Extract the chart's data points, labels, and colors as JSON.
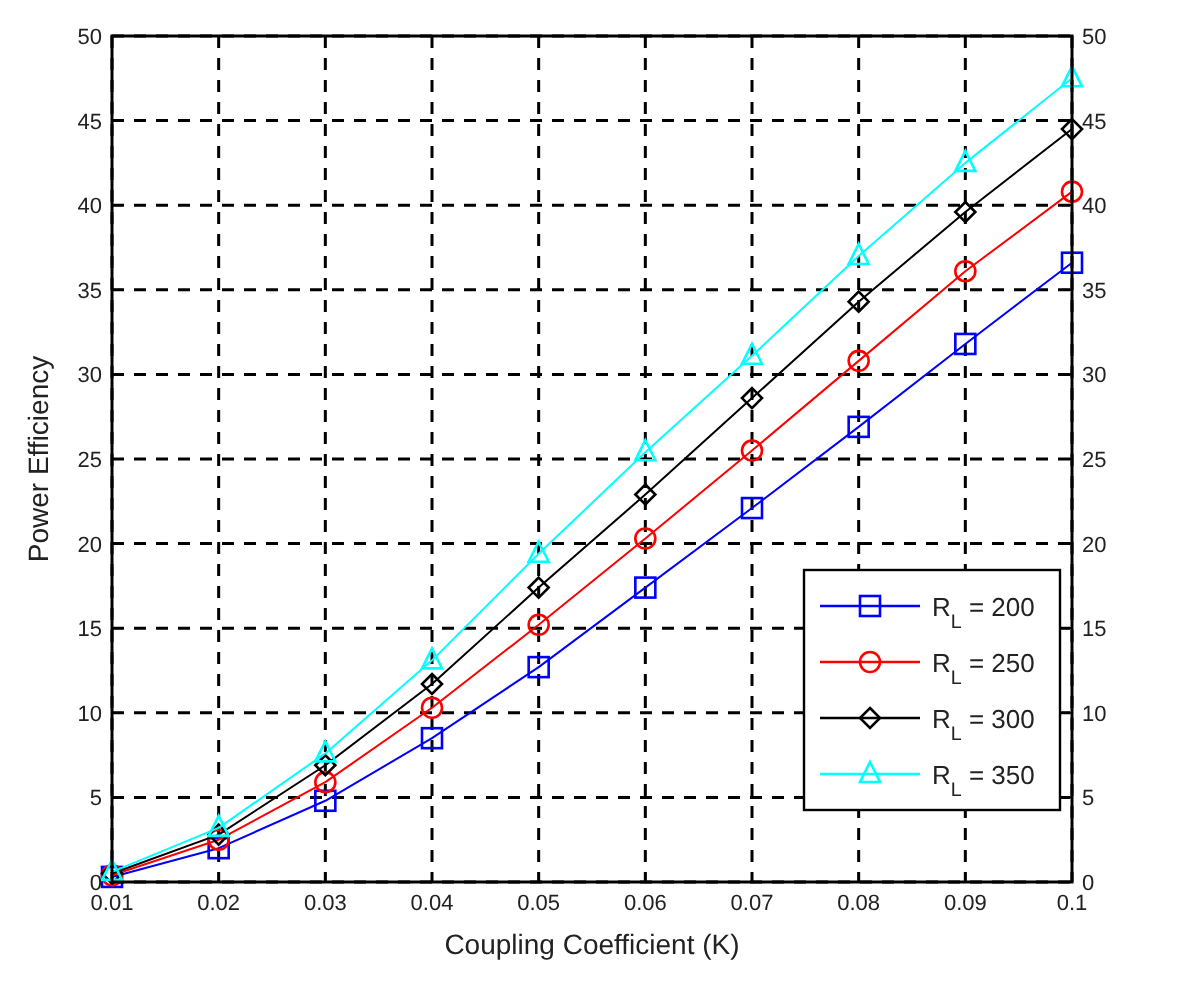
{
  "chart_data": {
    "type": "line",
    "xlabel": "Coupling Coefficient (K)",
    "ylabel": "Power Efficiency",
    "x": [
      0.01,
      0.02,
      0.03,
      0.04,
      0.05,
      0.06,
      0.07,
      0.08,
      0.09,
      0.1
    ],
    "xlim": [
      0.01,
      0.1
    ],
    "xticks": [
      0.01,
      0.02,
      0.03,
      0.04,
      0.05,
      0.06,
      0.07,
      0.08,
      0.09,
      0.1
    ],
    "ylim": [
      0,
      50
    ],
    "yticks": [
      0,
      5,
      10,
      15,
      20,
      25,
      30,
      35,
      40,
      45,
      50
    ],
    "y2lim": [
      0,
      50
    ],
    "y2ticks": [
      0,
      5,
      10,
      15,
      20,
      25,
      30,
      35,
      40,
      45,
      50
    ],
    "grid": true,
    "legend": "bottom right",
    "series": [
      {
        "name": "R$_{L}$ = 200",
        "color": "#0000ff",
        "marker": "square",
        "values": [
          0.3,
          2.0,
          4.8,
          8.5,
          12.7,
          17.4,
          22.1,
          26.9,
          31.8,
          36.6
        ]
      },
      {
        "name": "R$_{L}$ = 250",
        "color": "#ff0000",
        "marker": "circle",
        "values": [
          0.4,
          2.5,
          5.9,
          10.3,
          15.2,
          20.3,
          25.5,
          30.8,
          36.1,
          40.8
        ]
      },
      {
        "name": "R$_{L}$ = 300",
        "color": "#000000",
        "marker": "diamond",
        "values": [
          0.5,
          2.8,
          6.9,
          11.7,
          17.4,
          22.9,
          28.6,
          34.3,
          39.6,
          44.5
        ]
      },
      {
        "name": "R$_{L}$ = 350",
        "color": "#00ffff",
        "marker": "triangle",
        "values": [
          0.6,
          3.2,
          7.6,
          13.1,
          19.4,
          25.4,
          31.1,
          37.0,
          42.5,
          47.5
        ]
      }
    ]
  }
}
